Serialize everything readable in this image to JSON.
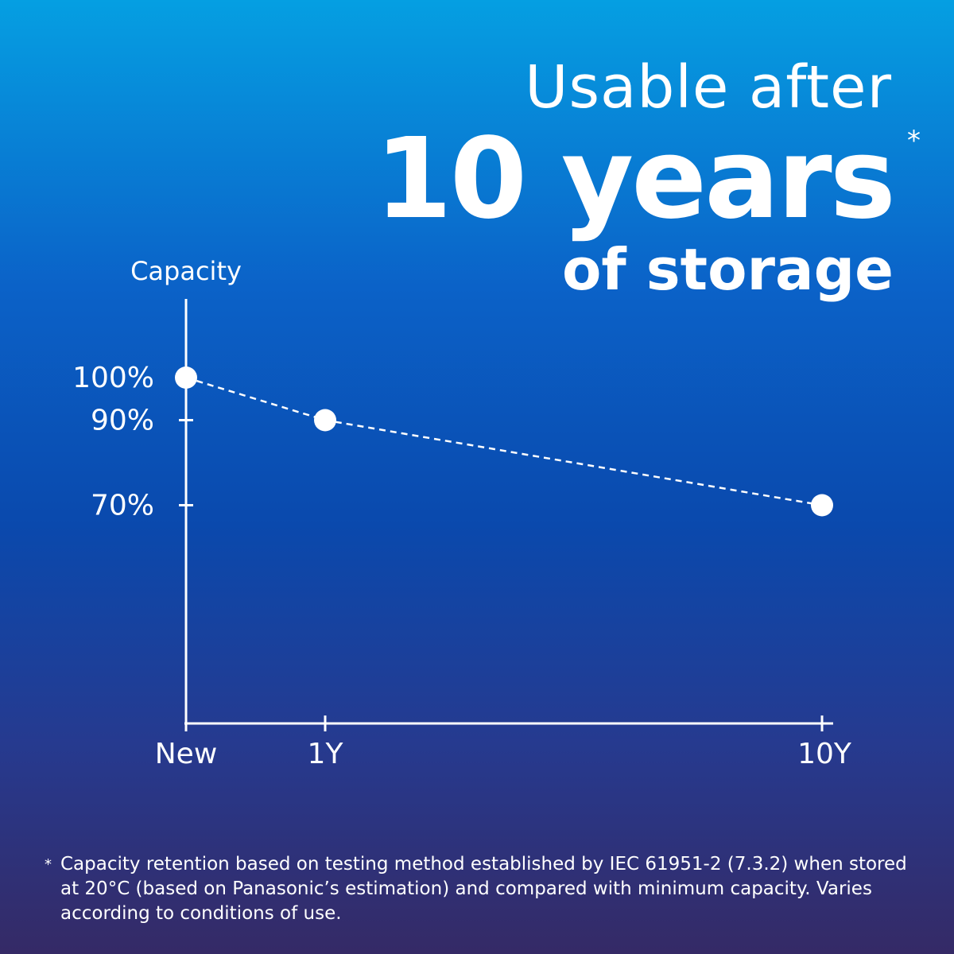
{
  "headline": {
    "line1": "Usable after",
    "line2": "10 years",
    "asterisk": "*",
    "line3": "of storage"
  },
  "chart_data": {
    "type": "line",
    "ylabel": "Capacity",
    "xlabel": "",
    "categories": [
      "New",
      "1Y",
      "10Y"
    ],
    "x": [
      0,
      1,
      10
    ],
    "values": [
      100,
      90,
      70
    ],
    "y_ticks": [
      {
        "value": 100,
        "label": "100%"
      },
      {
        "value": 90,
        "label": "90%"
      },
      {
        "value": 70,
        "label": "70%"
      }
    ],
    "line_style": "dashed",
    "grid": false,
    "legend": "none"
  },
  "footnote": {
    "mark": "*",
    "text": "Capacity retention based on testing method established by IEC 61951-2 (7.3.2) when stored at 20°C (based on Panasonic’s estimation) and compared with minimum capacity. Varies according to conditions of use."
  },
  "colors": {
    "background_top": "#059fe2",
    "background_mid": "#0a49ad",
    "background_bottom": "#352a66",
    "foreground": "#ffffff"
  }
}
